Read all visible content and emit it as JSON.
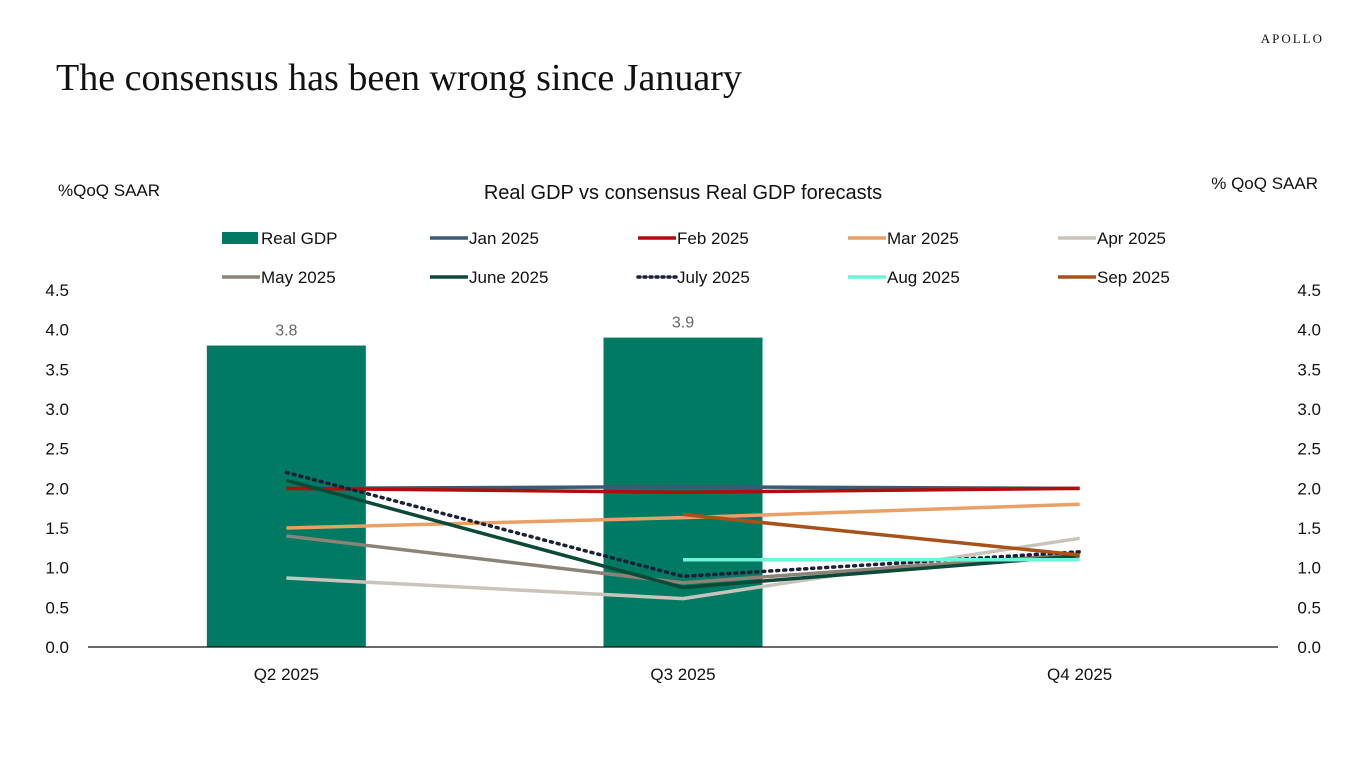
{
  "header": {
    "title": "The consensus has been wrong since January",
    "logo": "APOLLO"
  },
  "chart_data": {
    "type": "bar+line",
    "title": "Real GDP vs consensus Real GDP forecasts",
    "ylabel_left": "%QoQ SAAR",
    "ylabel_right": "% QoQ SAAR",
    "ylim": [
      0,
      4.5
    ],
    "yticks": [
      "0.0",
      "0.5",
      "1.0",
      "1.5",
      "2.0",
      "2.5",
      "3.0",
      "3.5",
      "4.0",
      "4.5"
    ],
    "categories": [
      "Q2 2025",
      "Q3 2025",
      "Q4 2025"
    ],
    "legend_position": "top",
    "bars": {
      "name": "Real GDP",
      "color": "#007a62",
      "values": [
        3.8,
        3.9,
        null
      ],
      "labels": [
        "3.8",
        "3.9",
        ""
      ]
    },
    "series": [
      {
        "name": "Jan 2025",
        "color": "#3c5a78",
        "dash": false,
        "values": [
          2.0,
          2.02,
          2.0
        ]
      },
      {
        "name": "Feb 2025",
        "color": "#b00e0e",
        "dash": false,
        "values": [
          2.0,
          1.95,
          2.0
        ]
      },
      {
        "name": "Mar 2025",
        "color": "#e8a066",
        "dash": false,
        "values": [
          1.5,
          1.63,
          1.8
        ]
      },
      {
        "name": "Apr 2025",
        "color": "#c8c4bc",
        "dash": false,
        "values": [
          0.87,
          0.61,
          1.37
        ]
      },
      {
        "name": "May 2025",
        "color": "#8c8378",
        "dash": false,
        "values": [
          1.4,
          0.81,
          1.17
        ]
      },
      {
        "name": "June 2025",
        "color": "#0b4a38",
        "dash": false,
        "values": [
          2.1,
          0.75,
          1.15
        ]
      },
      {
        "name": "July 2025",
        "color": "#1a2036",
        "dash": true,
        "values": [
          2.2,
          0.89,
          1.2
        ]
      },
      {
        "name": "Aug 2025",
        "color": "#6ff2d6",
        "dash": false,
        "values": [
          null,
          1.1,
          1.1
        ]
      },
      {
        "name": "Sep 2025",
        "color": "#a8521a",
        "dash": false,
        "values": [
          null,
          1.67,
          1.16
        ]
      }
    ]
  }
}
